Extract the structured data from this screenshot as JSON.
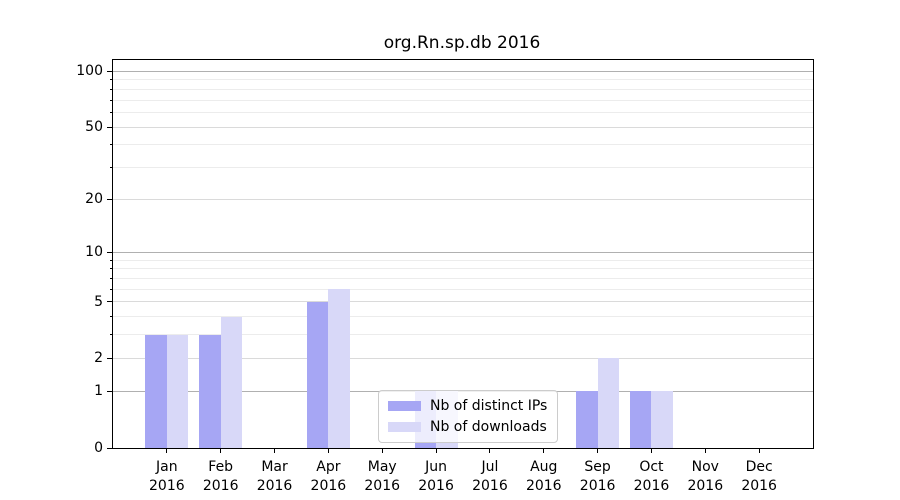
{
  "figure": {
    "background": "#ffffff"
  },
  "chart_data": {
    "type": "bar",
    "title": "org.Rn.sp.db 2016",
    "categories": [
      "Jan",
      "Feb",
      "Mar",
      "Apr",
      "May",
      "Jun",
      "Jul",
      "Aug",
      "Sep",
      "Oct",
      "Nov",
      "Dec"
    ],
    "category_year": "2016",
    "series": [
      {
        "name": "Nb of distinct IPs",
        "color": "#a6a6f4",
        "values": [
          3,
          3,
          0,
          5,
          0,
          1,
          0,
          0,
          1,
          1,
          0,
          0
        ]
      },
      {
        "name": "Nb of downloads",
        "color": "#d8d8f8",
        "values": [
          3,
          4,
          0,
          6,
          0,
          1,
          0,
          0,
          2,
          1,
          0,
          0
        ]
      }
    ],
    "yscale": "log1p",
    "ylim": [
      0,
      115
    ],
    "major_yticks": [
      0,
      1,
      2,
      5,
      10,
      20,
      50,
      100
    ],
    "decade_gridlines": [
      1,
      10,
      100
    ],
    "labeled_gridlines": [
      2,
      5,
      20,
      50
    ],
    "minor_gridlines": [
      3,
      4,
      6,
      7,
      8,
      9,
      30,
      40,
      60,
      70,
      80,
      90
    ],
    "grid": {
      "decade_color": "#b0b0b0",
      "labeled_color": "#dadada",
      "minor_color": "#ececec",
      "spine_color": "#000000"
    },
    "legend": {
      "position": "lower center",
      "background": "rgba(255,255,255,0.8)",
      "border_color": "#cccccc"
    }
  }
}
